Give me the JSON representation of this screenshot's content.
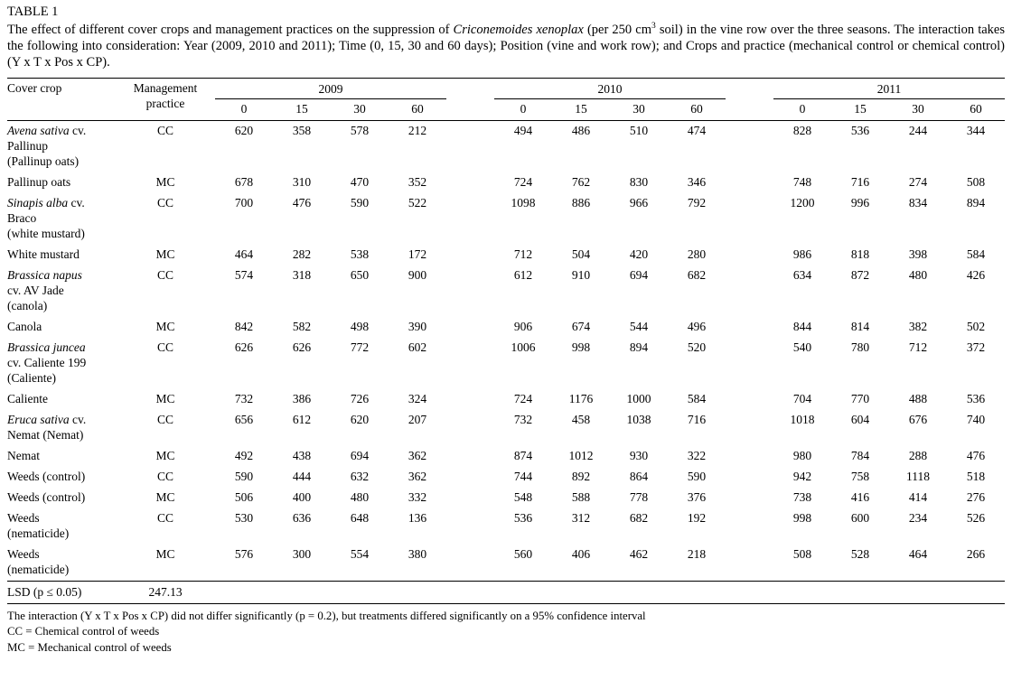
{
  "title": "TABLE 1",
  "caption": {
    "pre_species": "The effect of different cover crops and management practices on the suppression of ",
    "species": "Criconemoides xenoplax",
    "mid": " (per 250 cm",
    "sup": "3",
    "post": " soil) in the vine row over the three seasons. The interaction takes the following into consideration: Year (2009, 2010 and 2011); Time (0, 15, 30 and 60 days); Position (vine and work row); and Crops and practice (mechanical control or chemical control) (Y x T x Pos x CP)."
  },
  "table": {
    "headers": {
      "cover_crop": "Cover crop",
      "management_practice": "Management practice"
    },
    "years": [
      "2009",
      "2010",
      "2011"
    ],
    "times": [
      "0",
      "15",
      "30",
      "60"
    ],
    "rows": [
      {
        "crop_lines": [
          {
            "italic": "Avena sativa",
            "plain": " cv."
          },
          {
            "italic": "",
            "plain": "Pallinup"
          },
          {
            "italic": "",
            "plain": "(Pallinup oats)"
          }
        ],
        "practice": "CC",
        "values": [
          [
            620,
            358,
            578,
            212
          ],
          [
            494,
            486,
            510,
            474
          ],
          [
            828,
            536,
            244,
            344
          ]
        ]
      },
      {
        "crop_lines": [
          {
            "italic": "",
            "plain": "Pallinup oats"
          }
        ],
        "practice": "MC",
        "values": [
          [
            678,
            310,
            470,
            352
          ],
          [
            724,
            762,
            830,
            346
          ],
          [
            748,
            716,
            274,
            508
          ]
        ]
      },
      {
        "crop_lines": [
          {
            "italic": "Sinapis alba",
            "plain": " cv."
          },
          {
            "italic": "",
            "plain": "Braco"
          },
          {
            "italic": "",
            "plain": "(white mustard)"
          }
        ],
        "practice": "CC",
        "values": [
          [
            700,
            476,
            590,
            522
          ],
          [
            1098,
            886,
            966,
            792
          ],
          [
            1200,
            996,
            834,
            894
          ]
        ]
      },
      {
        "crop_lines": [
          {
            "italic": "",
            "plain": "White mustard"
          }
        ],
        "practice": "MC",
        "values": [
          [
            464,
            282,
            538,
            172
          ],
          [
            712,
            504,
            420,
            280
          ],
          [
            986,
            818,
            398,
            584
          ]
        ]
      },
      {
        "crop_lines": [
          {
            "italic": "Brassica napus",
            "plain": ""
          },
          {
            "italic": "",
            "plain": "cv. AV Jade"
          },
          {
            "italic": "",
            "plain": "(canola)"
          }
        ],
        "practice": "CC",
        "values": [
          [
            574,
            318,
            650,
            900
          ],
          [
            612,
            910,
            694,
            682
          ],
          [
            634,
            872,
            480,
            426
          ]
        ]
      },
      {
        "crop_lines": [
          {
            "italic": "",
            "plain": "Canola"
          }
        ],
        "practice": "MC",
        "values": [
          [
            842,
            582,
            498,
            390
          ],
          [
            906,
            674,
            544,
            496
          ],
          [
            844,
            814,
            382,
            502
          ]
        ]
      },
      {
        "crop_lines": [
          {
            "italic": "Brassica juncea",
            "plain": ""
          },
          {
            "italic": "",
            "plain": "cv. Caliente 199"
          },
          {
            "italic": "",
            "plain": "(Caliente)"
          }
        ],
        "practice": "CC",
        "values": [
          [
            626,
            626,
            772,
            602
          ],
          [
            1006,
            998,
            894,
            520
          ],
          [
            540,
            780,
            712,
            372
          ]
        ]
      },
      {
        "crop_lines": [
          {
            "italic": "",
            "plain": "Caliente"
          }
        ],
        "practice": "MC",
        "values": [
          [
            732,
            386,
            726,
            324
          ],
          [
            724,
            1176,
            1000,
            584
          ],
          [
            704,
            770,
            488,
            536
          ]
        ]
      },
      {
        "crop_lines": [
          {
            "italic": "Eruca sativa",
            "plain": " cv."
          },
          {
            "italic": "",
            "plain": "Nemat (Nemat)"
          }
        ],
        "practice": "CC",
        "values": [
          [
            656,
            612,
            620,
            207
          ],
          [
            732,
            458,
            1038,
            716
          ],
          [
            1018,
            604,
            676,
            740
          ]
        ]
      },
      {
        "crop_lines": [
          {
            "italic": "",
            "plain": "Nemat"
          }
        ],
        "practice": "MC",
        "values": [
          [
            492,
            438,
            694,
            362
          ],
          [
            874,
            1012,
            930,
            322
          ],
          [
            980,
            784,
            288,
            476
          ]
        ]
      },
      {
        "crop_lines": [
          {
            "italic": "",
            "plain": "Weeds (control)"
          }
        ],
        "practice": "CC",
        "values": [
          [
            590,
            444,
            632,
            362
          ],
          [
            744,
            892,
            864,
            590
          ],
          [
            942,
            758,
            1118,
            518
          ]
        ]
      },
      {
        "crop_lines": [
          {
            "italic": "",
            "plain": "Weeds (control)"
          }
        ],
        "practice": "MC",
        "values": [
          [
            506,
            400,
            480,
            332
          ],
          [
            548,
            588,
            778,
            376
          ],
          [
            738,
            416,
            414,
            276
          ]
        ]
      },
      {
        "crop_lines": [
          {
            "italic": "",
            "plain": "Weeds"
          },
          {
            "italic": "",
            "plain": "(nematicide)"
          }
        ],
        "practice": "CC",
        "values": [
          [
            530,
            636,
            648,
            136
          ],
          [
            536,
            312,
            682,
            192
          ],
          [
            998,
            600,
            234,
            526
          ]
        ]
      },
      {
        "crop_lines": [
          {
            "italic": "",
            "plain": "Weeds"
          },
          {
            "italic": "",
            "plain": "(nematicide)"
          }
        ],
        "practice": "MC",
        "values": [
          [
            576,
            300,
            554,
            380
          ],
          [
            560,
            406,
            462,
            218
          ],
          [
            508,
            528,
            464,
            266
          ]
        ]
      }
    ],
    "lsd": {
      "label": "LSD (p ≤ 0.05)",
      "value": "247.13"
    }
  },
  "footnotes": [
    "The interaction (Y x T x Pos x CP) did not differ significantly (p = 0.2), but treatments differed significantly on a 95% confidence interval",
    "CC = Chemical control of weeds",
    "MC = Mechanical control of weeds"
  ]
}
